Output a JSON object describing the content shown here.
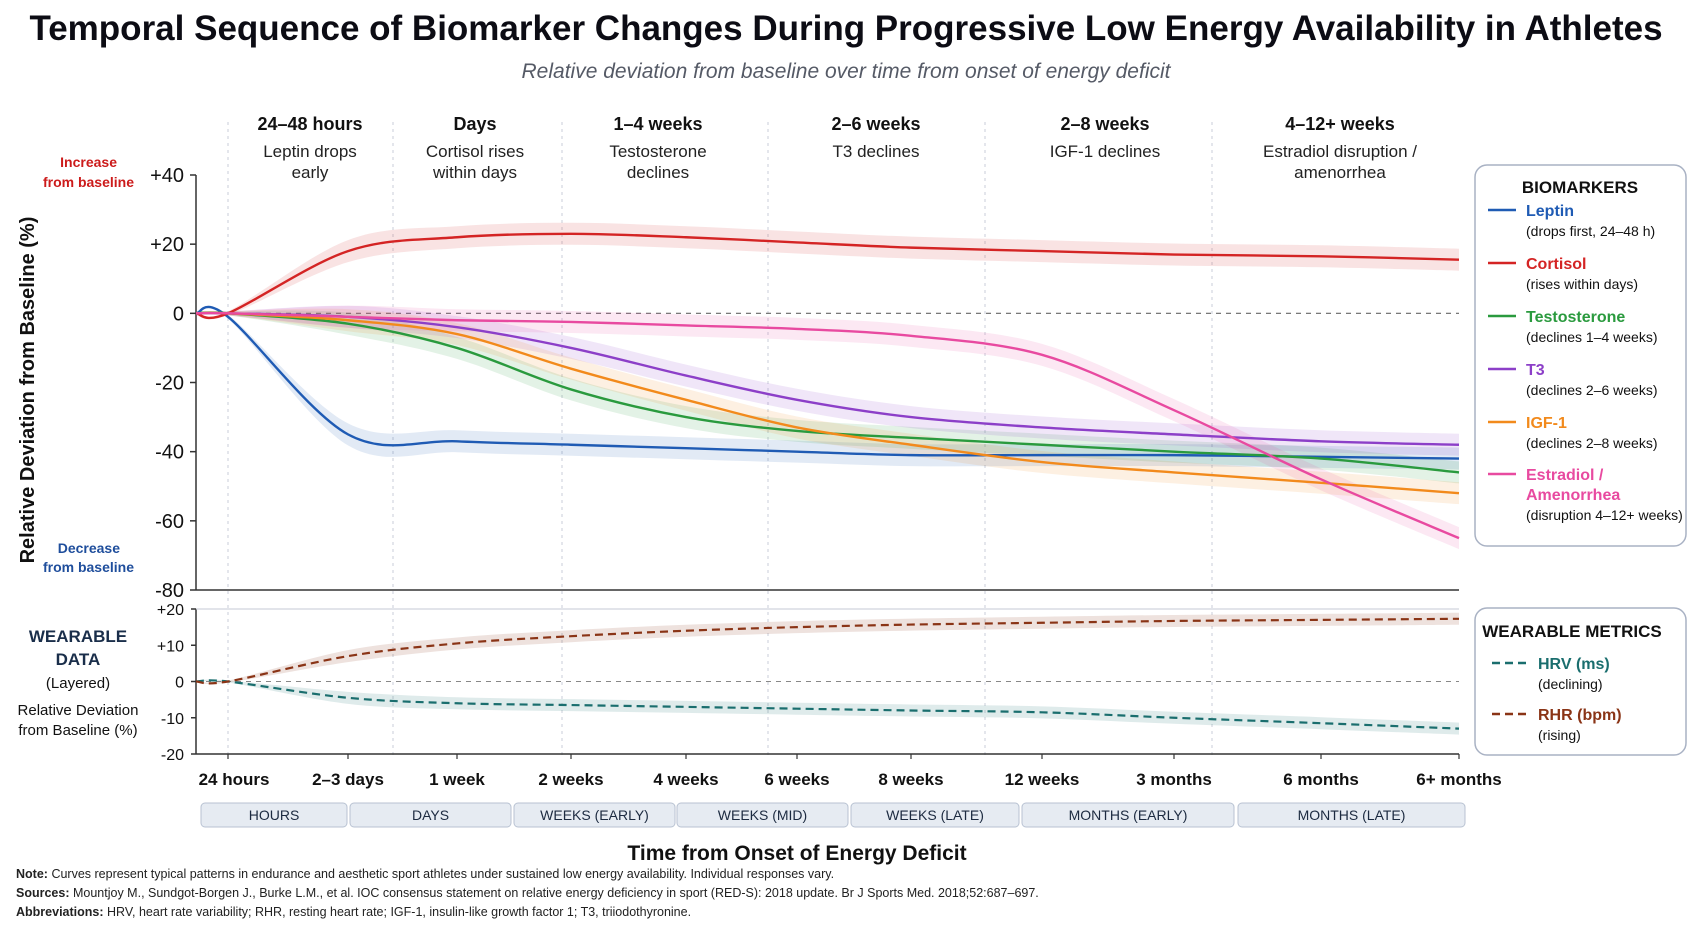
{
  "title": "Temporal Sequence of Biomarker Changes During Progressive Low Energy Availability in Athletes",
  "subtitle": "Relative deviation from baseline over time from onset of energy deficit",
  "phases": [
    {
      "heading": "24–48 hours",
      "desc": [
        "Leptin drops",
        "early"
      ]
    },
    {
      "heading": "Days",
      "desc": [
        "Cortisol rises",
        "within days"
      ]
    },
    {
      "heading": "1–4 weeks",
      "desc": [
        "Testosterone",
        "declines"
      ]
    },
    {
      "heading": "2–6 weeks",
      "desc": [
        "T3 declines"
      ]
    },
    {
      "heading": "2–8 weeks",
      "desc": [
        "IGF-1 declines"
      ]
    },
    {
      "heading": "4–12+ weeks",
      "desc": [
        "Estradiol disruption /",
        "amenorrhea"
      ]
    }
  ],
  "y_annotations": {
    "increase": [
      "Increase",
      "from baseline"
    ],
    "decrease": [
      "Decrease",
      "from baseline"
    ]
  },
  "wearable_panel_label": {
    "line1": "WEARABLE",
    "line2": "DATA",
    "line3": "(Layered)",
    "line4": "Relative Deviation",
    "line5": "from Baseline (%)"
  },
  "legend": {
    "title": "BIOMARKERS",
    "items": [
      {
        "name": "Leptin",
        "desc": "(drops first, 24–48 h)"
      },
      {
        "name": "Cortisol",
        "desc": "(rises within days)"
      },
      {
        "name": "Testosterone",
        "desc": "(declines 1–4 weeks)"
      },
      {
        "name": "T3",
        "desc": "(declines 2–6 weeks)"
      },
      {
        "name": "IGF-1",
        "desc": "(declines 2–8 weeks)"
      },
      {
        "name": "Estradiol /",
        "name2": "Amenorrhea",
        "desc": "(disruption 4–12+ weeks)"
      }
    ]
  },
  "wear_legend": {
    "title": "WEARABLE METRICS",
    "items": [
      {
        "name": "HRV (ms)",
        "desc": "(declining)"
      },
      {
        "name": "RHR (bpm)",
        "desc": "(rising)"
      }
    ]
  },
  "time_categories": [
    "HOURS",
    "DAYS",
    "WEEKS (EARLY)",
    "WEEKS (MID)",
    "WEEKS (LATE)",
    "MONTHS (EARLY)",
    "MONTHS (LATE)"
  ],
  "footnotes": {
    "note_label": "Note:",
    "note": "Curves represent typical patterns in endurance and aesthetic sport athletes under sustained low energy availability. Individual responses vary.",
    "sources_label": "Sources:",
    "sources": "Mountjoy M., Sundgot-Borgen J., Burke L.M., et al. IOC consensus statement on relative energy deficiency in sport (RED-S): 2018 update. Br J Sports Med. 2018;52:687–697.",
    "abbr_label": "Abbreviations:",
    "abbr": "HRV, heart rate variability; RHR, resting heart rate; IGF-1, insulin-like growth factor 1; T3, triiodothyronine."
  },
  "chart_data": [
    {
      "type": "line",
      "title": "Temporal Sequence of Biomarker Changes During Progressive Low Energy Availability in Athletes",
      "subtitle": "Relative deviation from baseline over time from onset of energy deficit",
      "xlabel": "Time from Onset of Energy Deficit",
      "ylabel": "Relative Deviation from Baseline (%)",
      "x_categories": [
        "24 hours",
        "2–3 days",
        "1 week",
        "2 weeks",
        "4 weeks",
        "6 weeks",
        "8 weeks",
        "12 weeks",
        "3 months",
        "6 months",
        "6+ months"
      ],
      "y_ticks": [
        "+40",
        "+20",
        "0",
        "-20",
        "-40",
        "-60",
        "-80"
      ],
      "ylim": [
        -80,
        40
      ],
      "x": [
        0,
        1,
        2,
        3,
        4,
        5,
        6,
        7,
        8,
        9,
        10
      ],
      "reference_line": 0,
      "bands": "shaded variability band around each series",
      "legend_position": "right",
      "series": [
        {
          "name": "Leptin",
          "color": "#1f5bb4",
          "values": [
            -1,
            -35,
            -37,
            -38,
            -39,
            -40,
            -41,
            -41,
            -41,
            -41.5,
            -42
          ]
        },
        {
          "name": "Cortisol",
          "color": "#d42424",
          "values": [
            0,
            18,
            22,
            23,
            22,
            20.5,
            19,
            18,
            17,
            16.5,
            15.5
          ]
        },
        {
          "name": "Testosterone",
          "color": "#2a9a3e",
          "values": [
            0,
            -3,
            -10,
            -22,
            -30,
            -34,
            -36,
            -38,
            -40,
            -42,
            -46
          ]
        },
        {
          "name": "T3",
          "color": "#8c3fc8",
          "values": [
            0,
            -1,
            -4,
            -10,
            -18,
            -25,
            -30,
            -33,
            -35,
            -37,
            -38
          ]
        },
        {
          "name": "IGF-1",
          "color": "#f28a1c",
          "values": [
            0,
            -2,
            -6,
            -16,
            -25,
            -33,
            -38,
            -43,
            -46,
            -49,
            -52
          ]
        },
        {
          "name": "Estradiol / Amenorrhea",
          "color": "#e84aa0",
          "values": [
            0,
            -1,
            -2,
            -2.5,
            -3.5,
            -4.5,
            -6.5,
            -12,
            -28,
            -48,
            -65
          ]
        }
      ]
    },
    {
      "type": "line",
      "title": "WEARABLE DATA (Layered)",
      "ylabel": "Relative Deviation from Baseline (%)",
      "x_categories": [
        "24 hours",
        "2–3 days",
        "1 week",
        "2 weeks",
        "4 weeks",
        "6 weeks",
        "8 weeks",
        "12 weeks",
        "3 months",
        "6 months",
        "6+ months"
      ],
      "y_ticks": [
        "+20",
        "+10",
        "0",
        "-10",
        "-20"
      ],
      "ylim": [
        -20,
        20
      ],
      "x": [
        0,
        1,
        2,
        3,
        4,
        5,
        6,
        7,
        8,
        9,
        10
      ],
      "reference_line": 0,
      "legend_position": "right",
      "series": [
        {
          "name": "HRV (ms)",
          "color": "#1a6e6e",
          "style": "dashed",
          "values": [
            0,
            -4.5,
            -6,
            -6.5,
            -7,
            -7.5,
            -8,
            -8.5,
            -10,
            -11.5,
            -13
          ]
        },
        {
          "name": "RHR (bpm)",
          "color": "#8a3416",
          "style": "dashed",
          "values": [
            0,
            7,
            10.5,
            12.5,
            14,
            15,
            15.7,
            16.2,
            16.7,
            17,
            17.3
          ]
        }
      ]
    }
  ]
}
